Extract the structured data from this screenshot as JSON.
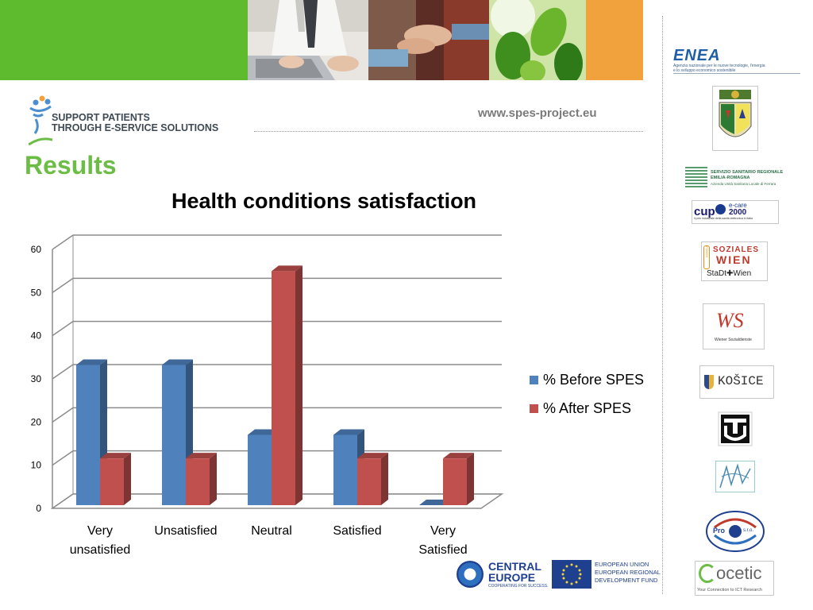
{
  "header": {
    "website": "www.spes-project.eu",
    "brand_line1": "SUPPORT PATIENTS",
    "brand_line2": "THROUGH E-SERVICE SOLUTIONS",
    "section_title": "Results"
  },
  "colors": {
    "banner_green": "#5fbb2e",
    "banner_orange": "#f2a23d",
    "results_green": "#6cbd45",
    "series_before": "#4f81bd",
    "series_after": "#c0504d"
  },
  "chart_data": {
    "type": "bar",
    "title": "Health conditions satisfaction",
    "categories": [
      [
        "Very",
        "unsatisfied"
      ],
      [
        "Unsatisfied"
      ],
      [
        "Neutral"
      ],
      [
        "Satisfied"
      ],
      [
        "Very",
        "Satisfied"
      ]
    ],
    "series": [
      {
        "name": "% Before SPES",
        "values": [
          33.3,
          33.3,
          16.7,
          16.7,
          0
        ]
      },
      {
        "name": "% After SPES",
        "values": [
          11.1,
          11.1,
          55.6,
          11.1,
          11.1
        ]
      }
    ],
    "ylim": [
      0,
      60
    ],
    "yticks": [
      "0",
      "10",
      "20",
      "30",
      "40",
      "50",
      "60"
    ],
    "grid": true,
    "legend": "right",
    "style": "3d"
  },
  "partners": {
    "enea_name": "ENEA",
    "enea_sub1": "Agenzia nazionale per le nuove tecnologie, l'energia",
    "enea_sub2": "e lo sviluppo economico sostenibile",
    "ssr_line1": "SERVIZIO SANITARIO REGIONALE",
    "ssr_line2": "EMILIA-ROMAGNA",
    "ssr_line3": "Azienda Unità Sanitaria Locale di Ferrara",
    "cup_name": "cup",
    "cup_ecare": "e-care",
    "cup_year": "2000",
    "cup_sub": "il polo industriale della sanità elettronica in Italia",
    "fsw_line1": "SOZIALES",
    "fsw_line2": "WIEN",
    "fsw_side": "FONDS",
    "fsw_city": "StaDt✚Wien",
    "ws_mark": "WS",
    "ws_sub": "Wiener Sozialdienste",
    "kosice": "KOŠICE",
    "procon_left": "Pro",
    "procon_right": "s.r.o.",
    "ocetic_name": "ocetic",
    "ocetic_tag": "Your Connection to ICT Research",
    "ce_line1": "CENTRAL",
    "ce_line2": "EUROPE",
    "ce_sub": "COOPERATING FOR SUCCESS.",
    "eu_line1": "EUROPEAN UNION",
    "eu_line2": "EUROPEAN REGIONAL",
    "eu_line3": "DEVELOPMENT FUND"
  }
}
